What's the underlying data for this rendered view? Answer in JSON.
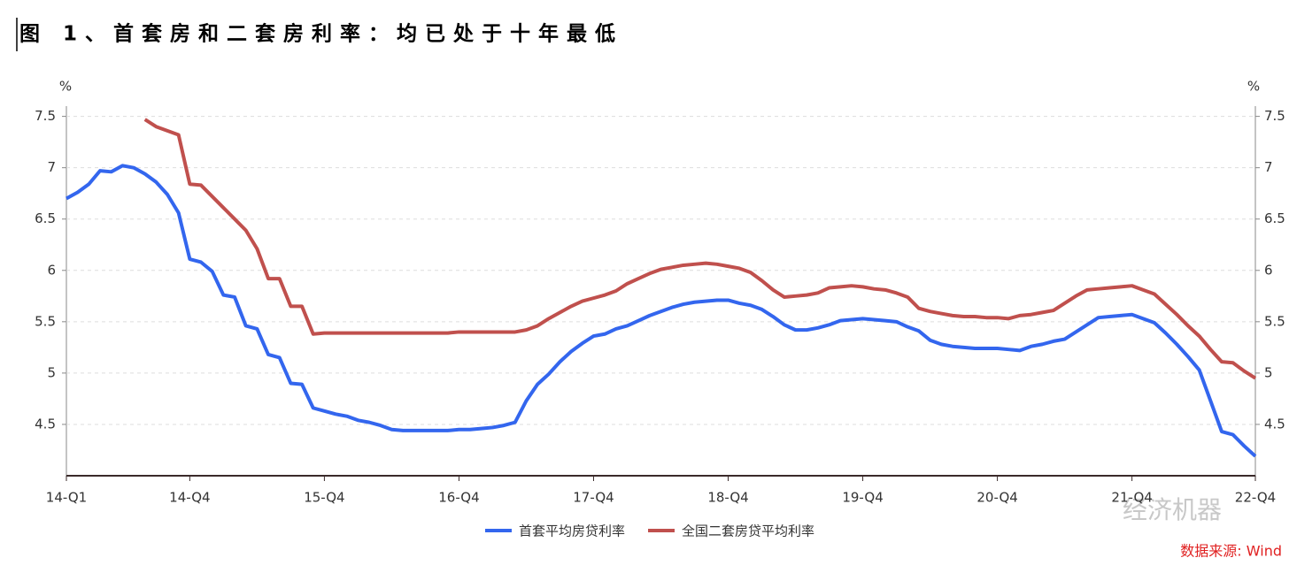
{
  "chart_data": {
    "type": "line",
    "title": "图 1、首套房和二套房利率：均已处于十年最低",
    "y_unit": "%",
    "y2_unit": "%",
    "source": "数据来源: Wind",
    "watermark": "经济机器",
    "categories": [
      "14-Q1",
      null,
      null,
      null,
      null,
      null,
      null,
      null,
      null,
      null,
      null,
      "14-Q4",
      null,
      null,
      null,
      null,
      null,
      null,
      null,
      null,
      null,
      null,
      null,
      "15-Q4",
      null,
      null,
      null,
      null,
      null,
      null,
      null,
      null,
      null,
      null,
      null,
      "16-Q4",
      null,
      null,
      null,
      null,
      null,
      null,
      null,
      null,
      null,
      null,
      null,
      "17-Q4",
      null,
      null,
      null,
      null,
      null,
      null,
      null,
      null,
      null,
      null,
      null,
      "18-Q4",
      null,
      null,
      null,
      null,
      null,
      null,
      null,
      null,
      null,
      null,
      null,
      "19-Q4",
      null,
      null,
      null,
      null,
      null,
      null,
      null,
      null,
      null,
      null,
      null,
      "20-Q4",
      null,
      null,
      null,
      null,
      null,
      null,
      null,
      null,
      null,
      null,
      null,
      "21-Q4",
      null,
      null,
      null,
      null,
      null,
      null,
      null,
      null,
      null,
      null,
      "22-Q4"
    ],
    "series": [
      {
        "name": "首套平均房贷利率",
        "color": "#3366ee",
        "values": [
          6.7,
          6.76,
          6.84,
          6.97,
          6.96,
          7.02,
          7.0,
          6.94,
          6.86,
          6.74,
          6.56,
          6.11,
          6.08,
          5.99,
          5.76,
          5.74,
          5.46,
          5.43,
          5.18,
          5.15,
          4.9,
          4.89,
          4.66,
          4.63,
          4.6,
          4.58,
          4.54,
          4.52,
          4.49,
          4.45,
          4.44,
          4.44,
          4.44,
          4.44,
          4.44,
          4.45,
          4.45,
          4.46,
          4.47,
          4.49,
          4.52,
          4.73,
          4.89,
          4.99,
          5.11,
          5.21,
          5.29,
          5.36,
          5.38,
          5.43,
          5.46,
          5.51,
          5.56,
          5.6,
          5.64,
          5.67,
          5.69,
          5.7,
          5.71,
          5.71,
          5.68,
          5.66,
          5.62,
          5.55,
          5.47,
          5.42,
          5.42,
          5.44,
          5.47,
          5.51,
          5.52,
          5.53,
          5.52,
          5.51,
          5.5,
          5.45,
          5.41,
          5.32,
          5.28,
          5.26,
          5.25,
          5.24,
          5.24,
          5.24,
          5.23,
          5.22,
          5.26,
          5.28,
          5.31,
          5.33,
          5.4,
          5.47,
          5.54,
          5.55,
          5.56,
          5.57,
          5.53,
          5.49,
          5.39,
          5.28,
          5.16,
          5.03,
          4.73,
          4.43,
          4.4,
          4.29,
          4.19
        ]
      },
      {
        "name": "全国二套房贷平均利率",
        "color": "#c0504d",
        "axis": "y2",
        "values": [
          null,
          null,
          null,
          null,
          null,
          null,
          null,
          7.47,
          7.4,
          7.36,
          7.32,
          6.84,
          6.83,
          6.72,
          6.61,
          6.5,
          6.39,
          6.21,
          5.92,
          5.92,
          5.65,
          5.65,
          5.38,
          5.39,
          5.39,
          5.39,
          5.39,
          5.39,
          5.39,
          5.39,
          5.39,
          5.39,
          5.39,
          5.39,
          5.39,
          5.4,
          5.4,
          5.4,
          5.4,
          5.4,
          5.4,
          5.42,
          5.46,
          5.53,
          5.59,
          5.65,
          5.7,
          5.73,
          5.76,
          5.8,
          5.87,
          5.92,
          5.97,
          6.01,
          6.03,
          6.05,
          6.06,
          6.07,
          6.06,
          6.04,
          6.02,
          5.98,
          5.9,
          5.81,
          5.74,
          5.75,
          5.76,
          5.78,
          5.83,
          5.84,
          5.85,
          5.84,
          5.82,
          5.81,
          5.78,
          5.74,
          5.63,
          5.6,
          5.58,
          5.56,
          5.55,
          5.55,
          5.54,
          5.54,
          5.53,
          5.56,
          5.57,
          5.59,
          5.61,
          5.68,
          5.75,
          5.81,
          5.82,
          5.83,
          5.84,
          5.85,
          5.81,
          5.77,
          5.67,
          5.57,
          5.46,
          5.36,
          5.23,
          5.11,
          5.1,
          5.02,
          4.95
        ]
      }
    ],
    "ylim": [
      4,
      7.6
    ],
    "yticks": [
      4.5,
      5,
      5.5,
      6,
      6.5,
      7,
      7.5
    ],
    "y2lim": [
      4,
      7.6
    ],
    "y2ticks": [
      4.5,
      5,
      5.5,
      6,
      6.5,
      7,
      7.5
    ],
    "grid": true
  }
}
